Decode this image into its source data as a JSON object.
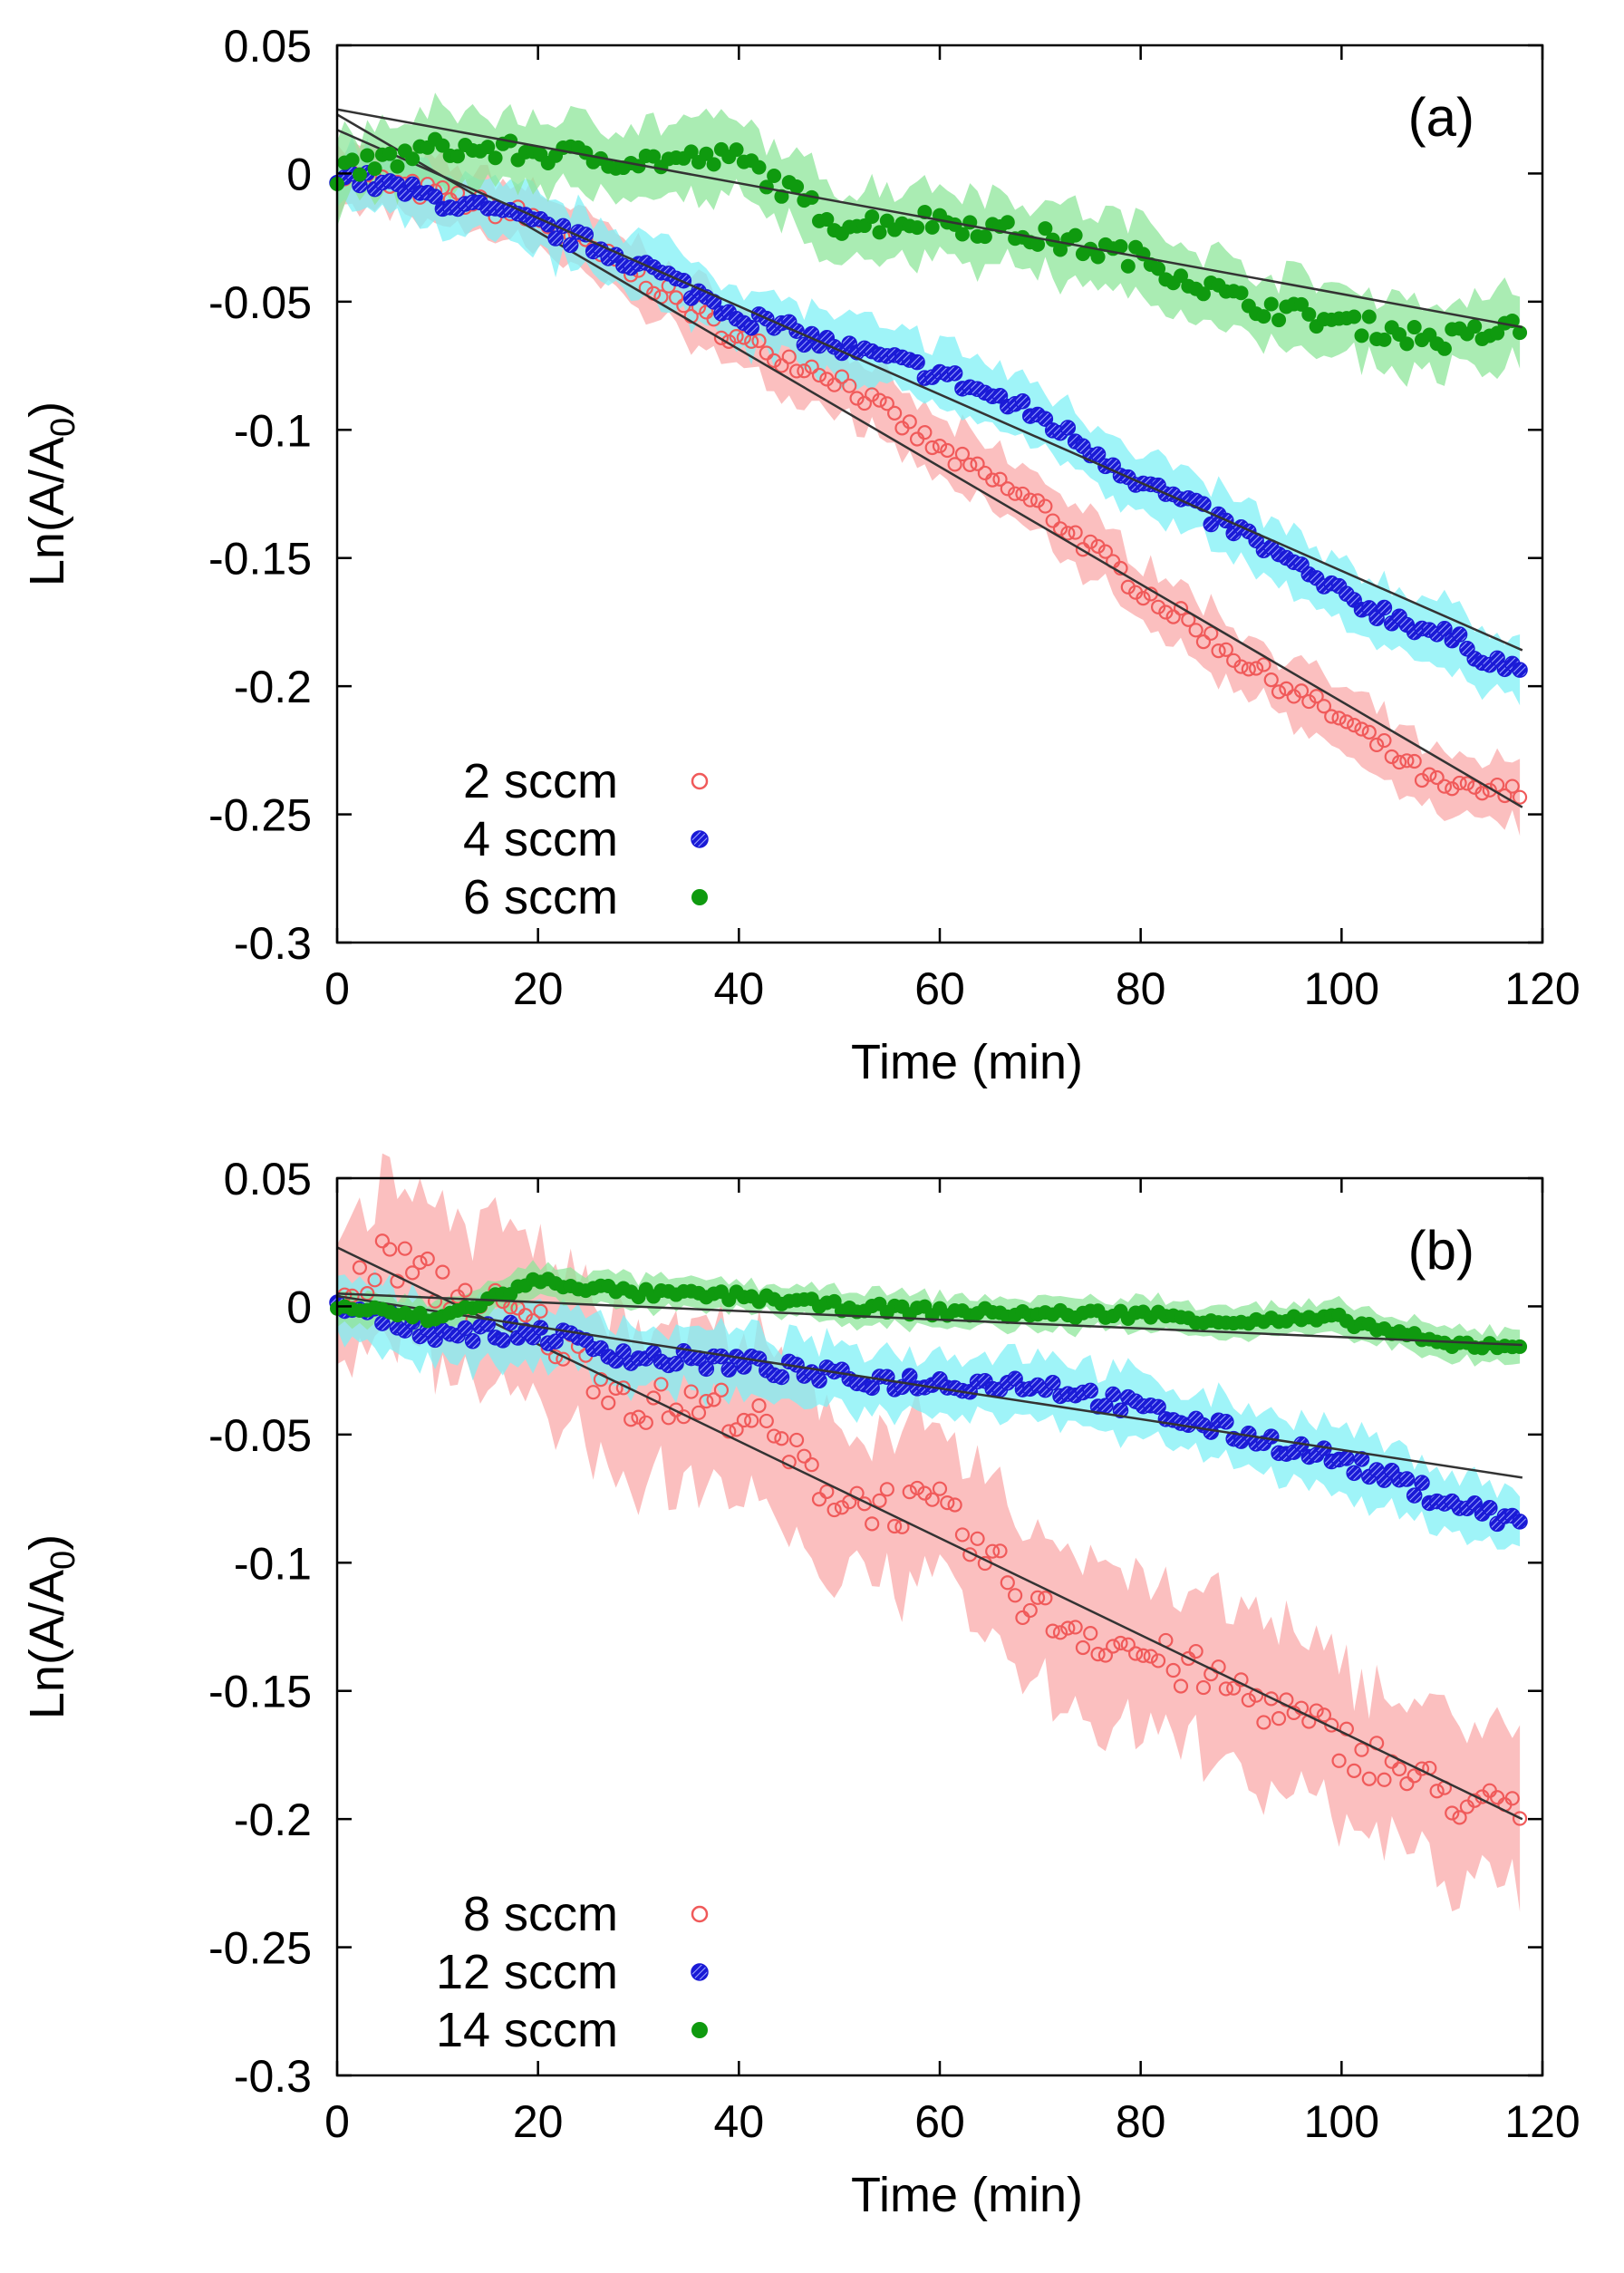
{
  "chart_data": [
    {
      "type": "scatter",
      "panel_label": "(a)",
      "xlabel": "Time (min)",
      "ylabel": "Ln(A/A",
      "ylabel_sub": "0",
      "ylabel_close": ")",
      "xlim": [
        0,
        120
      ],
      "ylim": [
        -0.3,
        0.05
      ],
      "xticks": [
        "0",
        "20",
        "40",
        "60",
        "80",
        "100",
        "120"
      ],
      "yticks": [
        "0.05",
        "0",
        "-0.05",
        "-0.1",
        "-0.15",
        "-0.2",
        "-0.25",
        "-0.3"
      ],
      "xtick_values": [
        0,
        20,
        40,
        60,
        80,
        100,
        120
      ],
      "ytick_values": [
        0.05,
        0,
        -0.05,
        -0.1,
        -0.15,
        -0.2,
        -0.25,
        -0.3
      ],
      "legend_position": "bottom-left",
      "series": [
        {
          "name": "2 sccm",
          "marker": "open-circle",
          "color": "#f05a5a",
          "band_color": "#f9a9a9",
          "x": [
            0,
            10,
            20,
            30,
            40,
            50,
            60,
            70,
            80,
            90,
            100,
            110,
            118
          ],
          "values": [
            0,
            -0.008,
            -0.018,
            -0.04,
            -0.065,
            -0.08,
            -0.108,
            -0.13,
            -0.162,
            -0.19,
            -0.213,
            -0.24,
            -0.242
          ],
          "band": 0.012,
          "fit": {
            "slope": -0.00229,
            "intercept": 0.023
          }
        },
        {
          "name": "4 sccm",
          "marker": "hatched-circle",
          "color": "#1a1ad6",
          "band_color": "#7ff0f5",
          "x": [
            0,
            10,
            20,
            30,
            40,
            50,
            60,
            70,
            80,
            90,
            100,
            110,
            118
          ],
          "values": [
            0,
            -0.01,
            -0.02,
            -0.035,
            -0.055,
            -0.068,
            -0.078,
            -0.095,
            -0.12,
            -0.14,
            -0.165,
            -0.18,
            -0.195
          ],
          "band": 0.012,
          "fit": {
            "slope": -0.00172,
            "intercept": 0.017
          }
        },
        {
          "name": "6 sccm",
          "marker": "filled-circle",
          "color": "#0f9a0f",
          "band_color": "#8ee59a",
          "x": [
            0,
            10,
            20,
            30,
            40,
            50,
            60,
            70,
            80,
            90,
            100,
            110,
            118
          ],
          "values": [
            0,
            0.01,
            0.008,
            0.005,
            0.006,
            -0.02,
            -0.018,
            -0.025,
            -0.033,
            -0.05,
            -0.058,
            -0.065,
            -0.06
          ],
          "band": 0.014,
          "fit": {
            "slope": -0.00072,
            "intercept": 0.025
          }
        }
      ]
    },
    {
      "type": "scatter",
      "panel_label": "(b)",
      "xlabel": "Time (min)",
      "ylabel": "Ln(A/A",
      "ylabel_sub": "0",
      "ylabel_close": ")",
      "xlim": [
        0,
        120
      ],
      "ylim": [
        -0.3,
        0.05
      ],
      "xticks": [
        "0",
        "20",
        "40",
        "60",
        "80",
        "100",
        "120"
      ],
      "yticks": [
        "0.05",
        "0",
        "-0.05",
        "-0.1",
        "-0.15",
        "-0.2",
        "-0.25",
        "-0.3"
      ],
      "xtick_values": [
        0,
        20,
        40,
        60,
        80,
        100,
        120
      ],
      "ytick_values": [
        0.05,
        0,
        -0.05,
        -0.1,
        -0.15,
        -0.2,
        -0.25,
        -0.3
      ],
      "legend_position": "bottom-left",
      "series": [
        {
          "name": "8 sccm",
          "marker": "open-circle",
          "color": "#f05a5a",
          "band_color": "#f9a9a9",
          "x": [
            0,
            5,
            10,
            20,
            30,
            40,
            50,
            60,
            70,
            80,
            90,
            100,
            110,
            118
          ],
          "values": [
            0,
            0.02,
            0.008,
            -0.008,
            -0.038,
            -0.04,
            -0.075,
            -0.08,
            -0.12,
            -0.135,
            -0.15,
            -0.17,
            -0.19,
            -0.2
          ],
          "band": 0.03,
          "fit": {
            "slope": -0.00189,
            "intercept": 0.023
          }
        },
        {
          "name": "12 sccm",
          "marker": "hatched-circle",
          "color": "#1a1ad6",
          "band_color": "#7ff0f5",
          "x": [
            0,
            10,
            20,
            30,
            40,
            50,
            60,
            70,
            80,
            90,
            100,
            110,
            118
          ],
          "values": [
            0,
            -0.01,
            -0.01,
            -0.02,
            -0.022,
            -0.028,
            -0.03,
            -0.03,
            -0.04,
            -0.05,
            -0.06,
            -0.075,
            -0.085
          ],
          "band": 0.012,
          "fit": {
            "slope": -0.0006,
            "intercept": 0.004
          }
        },
        {
          "name": "14 sccm",
          "marker": "filled-circle",
          "color": "#0f9a0f",
          "band_color": "#8ee59a",
          "x": [
            0,
            10,
            20,
            30,
            40,
            50,
            60,
            70,
            80,
            90,
            100,
            110,
            118
          ],
          "values": [
            0,
            -0.005,
            0.01,
            0.005,
            0.004,
            0,
            -0.002,
            -0.003,
            -0.003,
            -0.006,
            -0.005,
            -0.015,
            -0.015
          ],
          "band": 0.006,
          "fit": {
            "slope": -0.00017,
            "intercept": 0.005
          }
        }
      ]
    }
  ]
}
